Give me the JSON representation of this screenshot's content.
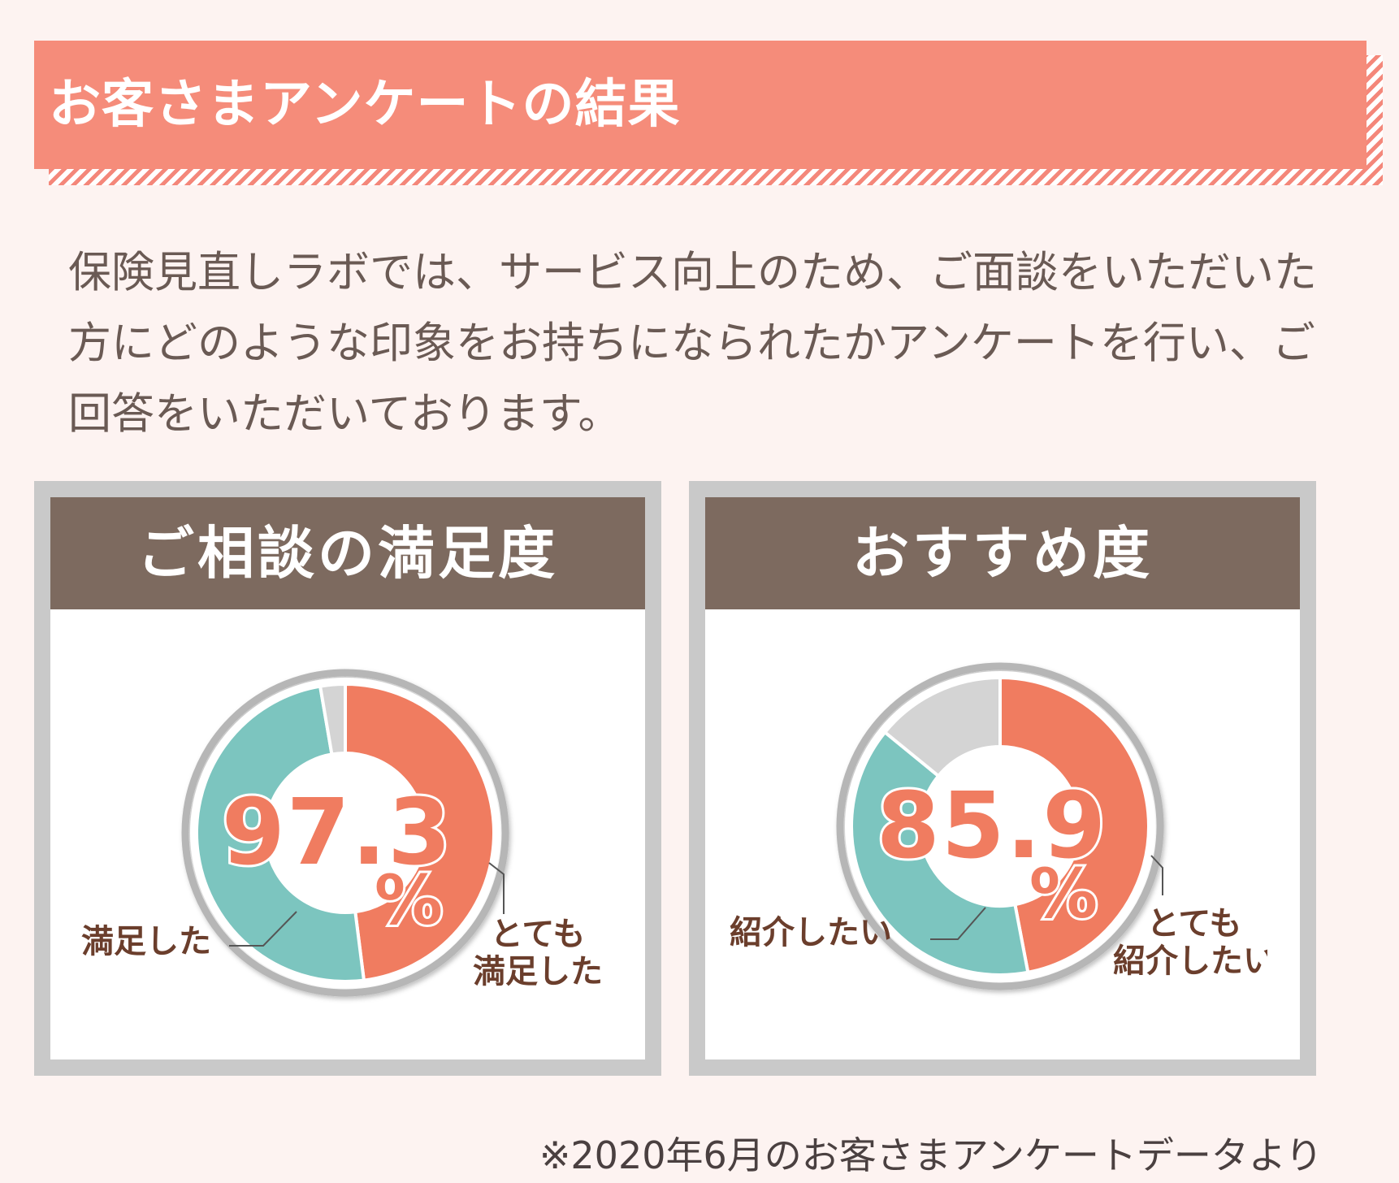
{
  "header": {
    "title": "お客さまアンケートの結果"
  },
  "intro": {
    "text": "保険見直しラボでは、サービス向上のため、ご面談をいただいた方にどのような印象をお持ちになられたかアンケートを行い、ご回答をいただいております。"
  },
  "colors": {
    "high": "#f07c60",
    "mid": "#7cc5bf",
    "other": "#d4d4d4",
    "label": "#6b3e2c",
    "accent": "#f58c7a"
  },
  "chart_data": [
    {
      "type": "pie",
      "title": "ご相談の満足度",
      "center_label": {
        "number": "97.3",
        "unit": "%"
      },
      "slices": [
        {
          "label": "とても\n満足した",
          "value": 48,
          "color": "#f07c60"
        },
        {
          "label": "満足した",
          "value": 49.3,
          "color": "#7cc5bf"
        },
        {
          "label": "",
          "value": 2.7,
          "color": "#d4d4d4"
        }
      ]
    },
    {
      "type": "pie",
      "title": "おすすめ度",
      "center_label": {
        "number": "85.9",
        "unit": "%"
      },
      "slices": [
        {
          "label": "とても\n紹介したい",
          "value": 47,
          "color": "#f07c60"
        },
        {
          "label": "紹介したい",
          "value": 38.9,
          "color": "#7cc5bf"
        },
        {
          "label": "",
          "value": 14.1,
          "color": "#d4d4d4"
        }
      ]
    }
  ],
  "footnote": "※2020年6月のお客さまアンケートデータより"
}
